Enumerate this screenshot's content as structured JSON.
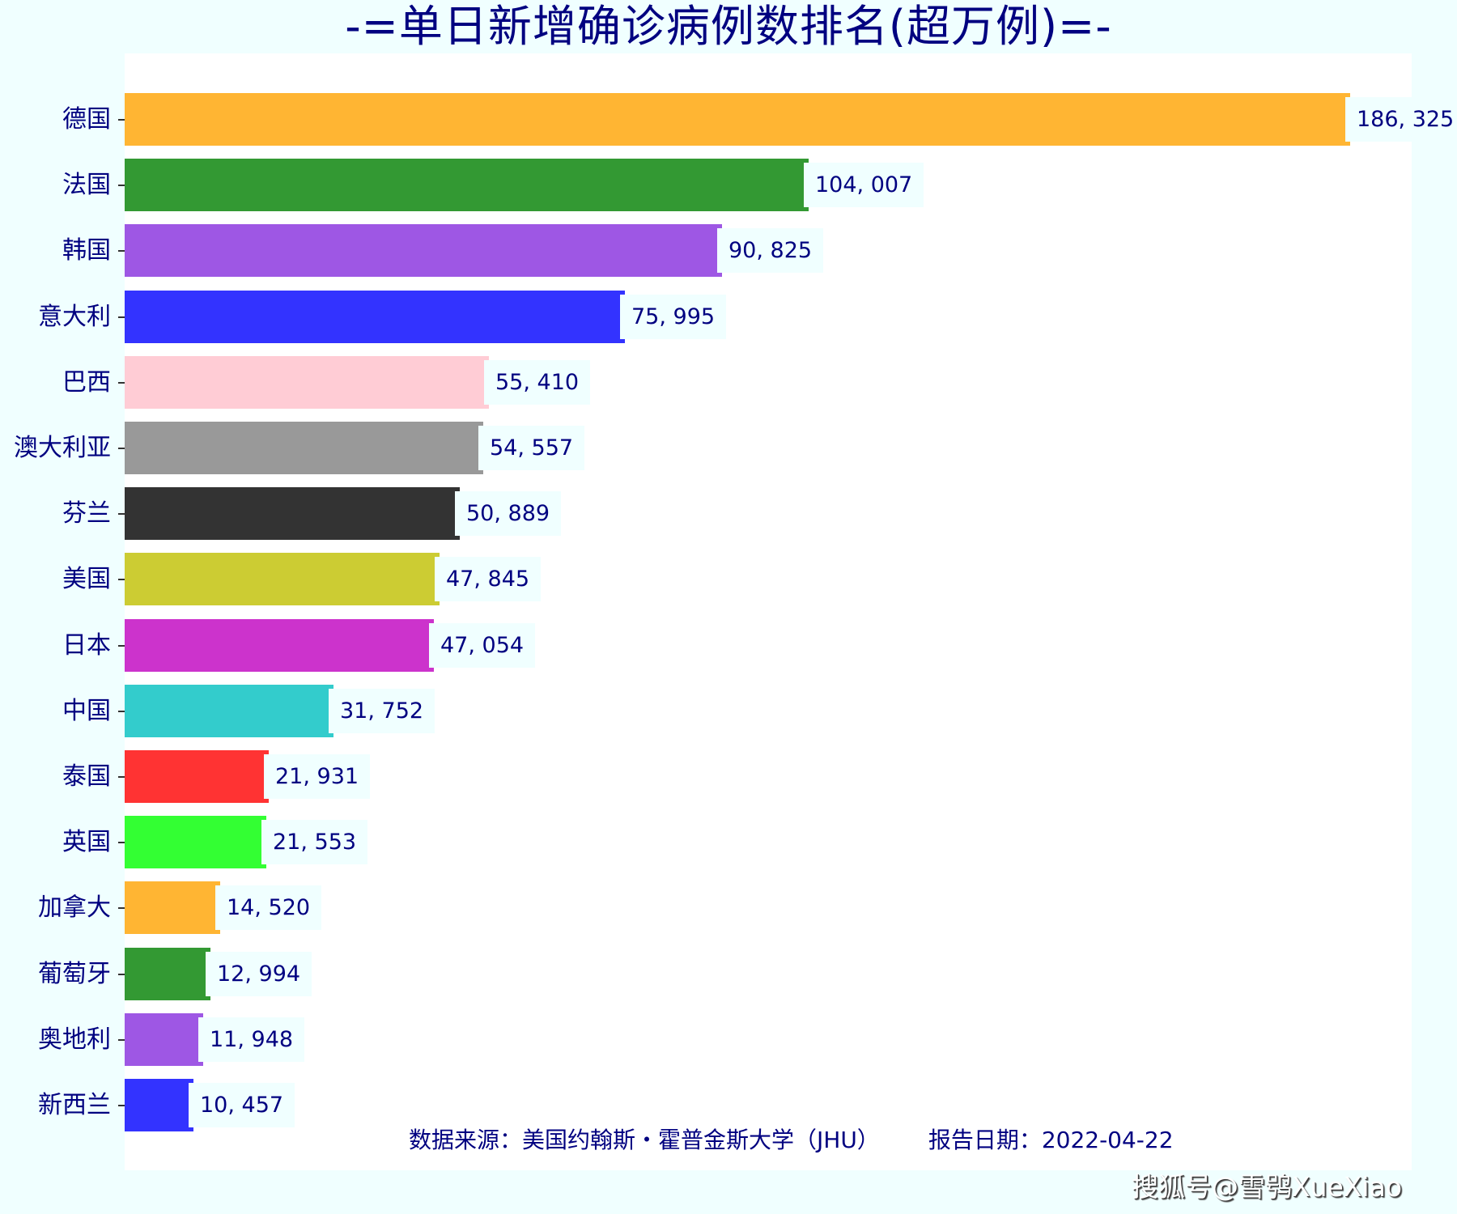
{
  "title": "-=单日新增确诊病例数排名(超万例)=-",
  "footer": {
    "source": "数据来源：美国约翰斯・霍普金斯大学（JHU）",
    "date": "报告日期：2022-04-22"
  },
  "watermark": "搜狐号@雪鸮XueXiao",
  "colors": {
    "background": "#F0FFFF",
    "plot_background": "#FFFFFF",
    "text": "#000080",
    "label_box": "#F0FFFF"
  },
  "chart_data": {
    "type": "bar",
    "orientation": "horizontal",
    "title": "-=单日新增确诊病例数排名(超万例)=-",
    "xlabel": "",
    "ylabel": "",
    "xlim": [
      0,
      195000
    ],
    "grid": false,
    "legend": null,
    "categories": [
      "德国",
      "法国",
      "韩国",
      "意大利",
      "巴西",
      "澳大利亚",
      "芬兰",
      "美国",
      "日本",
      "中国",
      "泰国",
      "英国",
      "加拿大",
      "葡萄牙",
      "奥地利",
      "新西兰"
    ],
    "values": [
      186325,
      104007,
      90825,
      75995,
      55410,
      54557,
      50889,
      47845,
      47054,
      31752,
      21931,
      21553,
      14520,
      12994,
      11948,
      10457
    ],
    "value_labels": [
      "186, 325",
      "104, 007",
      "90, 825",
      "75, 995",
      "55, 410",
      "54, 557",
      "50, 889",
      "47, 845",
      "47, 054",
      "31, 752",
      "21, 931",
      "21, 553",
      "14, 520",
      "12, 994",
      "11, 948",
      "10, 457"
    ],
    "bar_colors": [
      "#FFB533",
      "#339933",
      "#9E57E4",
      "#3333FF",
      "#FFCCD5",
      "#999999",
      "#333333",
      "#CCCC33",
      "#CC33CC",
      "#33CCCC",
      "#FF3333",
      "#33FF33",
      "#FFB533",
      "#339933",
      "#9E57E4",
      "#3333FF"
    ],
    "annotations": [
      "数据来源：美国约翰斯・霍普金斯大学（JHU）",
      "报告日期：2022-04-22"
    ]
  }
}
